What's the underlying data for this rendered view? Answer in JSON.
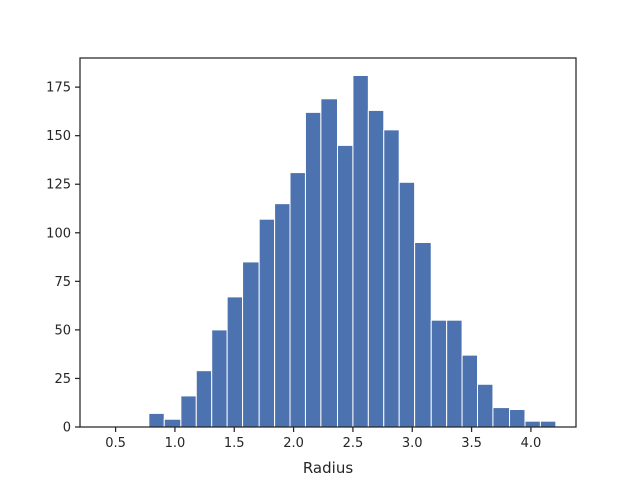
{
  "chart_data": {
    "type": "bar",
    "subtype": "histogram",
    "xlabel": "Radius",
    "ylabel": "",
    "xlim": [
      0.2,
      4.38
    ],
    "ylim": [
      0,
      190
    ],
    "xticks": [
      0.5,
      1.0,
      1.5,
      2.0,
      2.5,
      3.0,
      3.5,
      4.0
    ],
    "xtick_labels": [
      "0.5",
      "1.0",
      "1.5",
      "2.0",
      "2.5",
      "3.0",
      "3.5",
      "4.0"
    ],
    "yticks": [
      0,
      25,
      50,
      75,
      100,
      125,
      150,
      175
    ],
    "ytick_labels": [
      "0",
      "25",
      "50",
      "75",
      "100",
      "125",
      "150",
      "175"
    ],
    "grid": false,
    "bar_color": "#4c72b0",
    "bins": [
      {
        "x0": 0.39,
        "x1": 0.52,
        "value": 0
      },
      {
        "x0": 0.52,
        "x1": 0.65,
        "value": 0
      },
      {
        "x0": 0.65,
        "x1": 0.78,
        "value": 0
      },
      {
        "x0": 0.78,
        "x1": 0.91,
        "value": 7
      },
      {
        "x0": 0.91,
        "x1": 1.05,
        "value": 4
      },
      {
        "x0": 1.05,
        "x1": 1.18,
        "value": 16
      },
      {
        "x0": 1.18,
        "x1": 1.31,
        "value": 29
      },
      {
        "x0": 1.31,
        "x1": 1.44,
        "value": 50
      },
      {
        "x0": 1.44,
        "x1": 1.57,
        "value": 67
      },
      {
        "x0": 1.57,
        "x1": 1.71,
        "value": 85
      },
      {
        "x0": 1.71,
        "x1": 1.84,
        "value": 107
      },
      {
        "x0": 1.84,
        "x1": 1.97,
        "value": 115
      },
      {
        "x0": 1.97,
        "x1": 2.1,
        "value": 131
      },
      {
        "x0": 2.1,
        "x1": 2.23,
        "value": 162
      },
      {
        "x0": 2.23,
        "x1": 2.37,
        "value": 169
      },
      {
        "x0": 2.37,
        "x1": 2.5,
        "value": 145
      },
      {
        "x0": 2.5,
        "x1": 2.63,
        "value": 181
      },
      {
        "x0": 2.63,
        "x1": 2.76,
        "value": 163
      },
      {
        "x0": 2.76,
        "x1": 2.89,
        "value": 153
      },
      {
        "x0": 2.89,
        "x1": 3.02,
        "value": 126
      },
      {
        "x0": 3.02,
        "x1": 3.16,
        "value": 95
      },
      {
        "x0": 3.16,
        "x1": 3.29,
        "value": 55
      },
      {
        "x0": 3.29,
        "x1": 3.42,
        "value": 55
      },
      {
        "x0": 3.42,
        "x1": 3.55,
        "value": 37
      },
      {
        "x0": 3.55,
        "x1": 3.68,
        "value": 22
      },
      {
        "x0": 3.68,
        "x1": 3.82,
        "value": 10
      },
      {
        "x0": 3.82,
        "x1": 3.95,
        "value": 9
      },
      {
        "x0": 3.95,
        "x1": 4.08,
        "value": 3
      },
      {
        "x0": 4.08,
        "x1": 4.21,
        "value": 3
      }
    ]
  }
}
